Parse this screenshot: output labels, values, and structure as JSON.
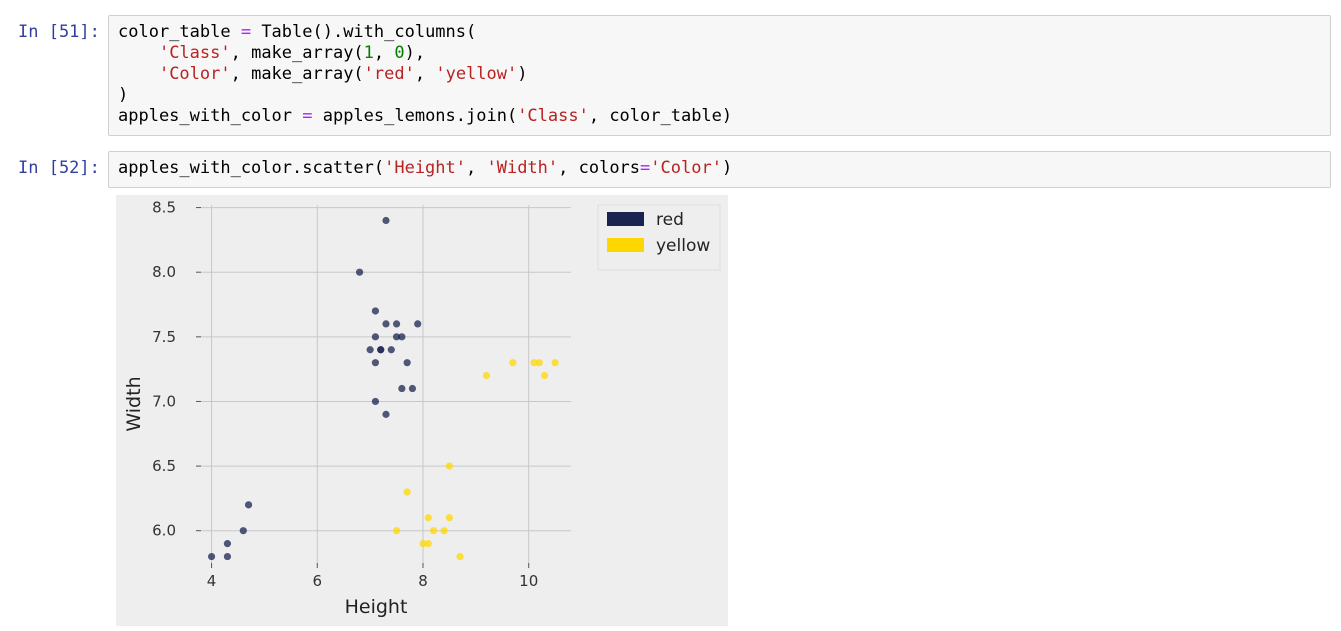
{
  "cells": [
    {
      "prompt": "In [51]:",
      "lines": [
        [
          {
            "t": "color_table "
          },
          {
            "t": "=",
            "c": "o"
          },
          {
            "t": " Table().with_columns("
          }
        ],
        [
          {
            "t": "    "
          },
          {
            "t": "'Class'",
            "c": "s"
          },
          {
            "t": ", make_array("
          },
          {
            "t": "1",
            "c": "n"
          },
          {
            "t": ", "
          },
          {
            "t": "0",
            "c": "n"
          },
          {
            "t": "),"
          }
        ],
        [
          {
            "t": "    "
          },
          {
            "t": "'Color'",
            "c": "s"
          },
          {
            "t": ", make_array("
          },
          {
            "t": "'red'",
            "c": "s"
          },
          {
            "t": ", "
          },
          {
            "t": "'yellow'",
            "c": "s"
          },
          {
            "t": ")"
          }
        ],
        [
          {
            "t": ")"
          }
        ],
        [
          {
            "t": "apples_with_color "
          },
          {
            "t": "=",
            "c": "o"
          },
          {
            "t": " apples_lemons.join("
          },
          {
            "t": "'Class'",
            "c": "s"
          },
          {
            "t": ", color_table)"
          }
        ]
      ]
    },
    {
      "prompt": "In [52]:",
      "lines": [
        [
          {
            "t": "apples_with_color.scatter("
          },
          {
            "t": "'Height'",
            "c": "s"
          },
          {
            "t": ", "
          },
          {
            "t": "'Width'",
            "c": "s"
          },
          {
            "t": ", colors"
          },
          {
            "t": "=",
            "c": "o"
          },
          {
            "t": "'Color'",
            "c": "s"
          },
          {
            "t": ")"
          }
        ]
      ]
    }
  ],
  "chart_data": {
    "type": "scatter",
    "xlabel": "Height",
    "ylabel": "Width",
    "xlim": [
      3.8,
      10.8
    ],
    "ylim": [
      5.75,
      8.52
    ],
    "xticks": [
      4,
      6,
      8,
      10
    ],
    "yticks": [
      6.0,
      6.5,
      7.0,
      7.5,
      8.0,
      8.5
    ],
    "yticklabels": [
      "6.0",
      "6.5",
      "7.0",
      "7.5",
      "8.0",
      "8.5"
    ],
    "grid": true,
    "legend_position": "outside-top-right",
    "series": [
      {
        "name": "red",
        "color": "#1a2350",
        "points": [
          [
            4.0,
            5.8
          ],
          [
            4.3,
            5.8
          ],
          [
            4.3,
            5.9
          ],
          [
            4.6,
            6.0
          ],
          [
            4.7,
            6.2
          ],
          [
            6.8,
            8.0
          ],
          [
            7.3,
            8.4
          ],
          [
            7.1,
            7.7
          ],
          [
            7.3,
            7.6
          ],
          [
            7.5,
            7.6
          ],
          [
            7.9,
            7.6
          ],
          [
            7.1,
            7.5
          ],
          [
            7.5,
            7.5
          ],
          [
            7.6,
            7.5
          ],
          [
            7.0,
            7.4
          ],
          [
            7.2,
            7.4
          ],
          [
            7.2,
            7.4
          ],
          [
            7.4,
            7.4
          ],
          [
            7.1,
            7.3
          ],
          [
            7.7,
            7.3
          ],
          [
            7.6,
            7.1
          ],
          [
            7.8,
            7.1
          ],
          [
            7.1,
            7.0
          ],
          [
            7.3,
            6.9
          ]
        ]
      },
      {
        "name": "yellow",
        "color": "#ffd700",
        "points": [
          [
            9.2,
            7.2
          ],
          [
            9.7,
            7.3
          ],
          [
            10.1,
            7.3
          ],
          [
            10.2,
            7.3
          ],
          [
            10.3,
            7.2
          ],
          [
            10.5,
            7.3
          ],
          [
            8.5,
            6.5
          ],
          [
            7.7,
            6.3
          ],
          [
            8.1,
            6.1
          ],
          [
            8.5,
            6.1
          ],
          [
            7.5,
            6.0
          ],
          [
            8.2,
            6.0
          ],
          [
            8.4,
            6.0
          ],
          [
            8.0,
            5.9
          ],
          [
            8.1,
            5.9
          ],
          [
            8.7,
            5.8
          ]
        ]
      }
    ]
  }
}
